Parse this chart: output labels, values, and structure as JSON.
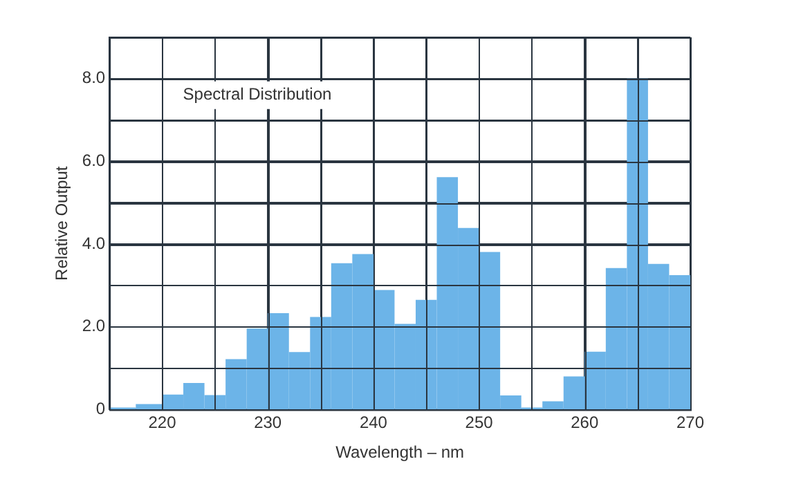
{
  "chart_data": {
    "type": "histogram",
    "title": "Spectral Distribution",
    "xlabel": "Wavelength – nm",
    "ylabel": "Relative Output",
    "bins": [
      215,
      217.5,
      220,
      222,
      224,
      226,
      228,
      230,
      232,
      234,
      236,
      238,
      240,
      242,
      244,
      246,
      248,
      250,
      252,
      254,
      256,
      258,
      260,
      262,
      264,
      266,
      268,
      270
    ],
    "values": [
      0.05,
      0.13,
      0.36,
      0.64,
      0.35,
      1.22,
      1.96,
      2.33,
      1.39,
      2.24,
      3.54,
      3.76,
      2.89,
      2.07,
      2.65,
      5.62,
      4.39,
      3.81,
      0.34,
      0.05,
      0.2,
      0.8,
      1.4,
      3.42,
      8.0,
      3.52,
      3.25
    ],
    "color": "#6cb4e8",
    "xlim": [
      215,
      270
    ],
    "xticks": [
      220,
      {
        "value": 225,
        "label": null
      },
      230,
      {
        "value": 235,
        "label": null
      },
      240,
      {
        "value": 245,
        "label": null
      },
      250,
      {
        "value": 255,
        "label": null
      },
      260,
      {
        "value": 265,
        "label": null
      },
      270
    ],
    "ylim": [
      0,
      9
    ],
    "yticks": [
      0,
      {
        "value": 1,
        "label": null
      },
      {
        "value": 2,
        "label": "2.0"
      },
      {
        "value": 3,
        "label": null
      },
      {
        "value": 4,
        "label": "4.0"
      },
      {
        "value": 5,
        "label": null
      },
      {
        "value": 6,
        "label": "6.0"
      },
      {
        "value": 7,
        "label": null
      },
      {
        "value": 8,
        "label": "8.0"
      },
      {
        "value": 9,
        "label": null
      }
    ],
    "grid": true
  }
}
